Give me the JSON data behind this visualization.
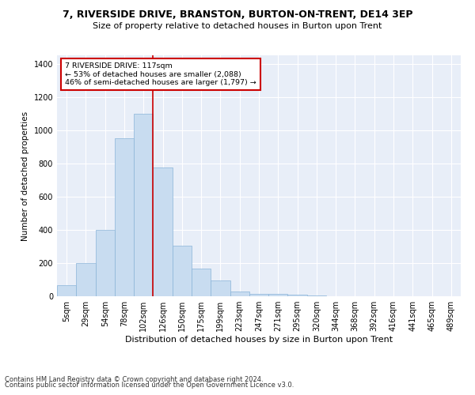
{
  "title1": "7, RIVERSIDE DRIVE, BRANSTON, BURTON-ON-TRENT, DE14 3EP",
  "title2": "Size of property relative to detached houses in Burton upon Trent",
  "xlabel": "Distribution of detached houses by size in Burton upon Trent",
  "ylabel": "Number of detached properties",
  "footnote1": "Contains HM Land Registry data © Crown copyright and database right 2024.",
  "footnote2": "Contains public sector information licensed under the Open Government Licence v3.0.",
  "annotation_line1": "7 RIVERSIDE DRIVE: 117sqm",
  "annotation_line2": "← 53% of detached houses are smaller (2,088)",
  "annotation_line3": "46% of semi-detached houses are larger (1,797) →",
  "bar_color": "#c8dcf0",
  "bar_edge_color": "#8ab4d8",
  "vline_color": "#cc0000",
  "annotation_box_edge": "#cc0000",
  "background_color": "#e8eef8",
  "categories": [
    "5sqm",
    "29sqm",
    "54sqm",
    "78sqm",
    "102sqm",
    "126sqm",
    "150sqm",
    "175sqm",
    "199sqm",
    "223sqm",
    "247sqm",
    "271sqm",
    "295sqm",
    "320sqm",
    "344sqm",
    "368sqm",
    "392sqm",
    "416sqm",
    "441sqm",
    "465sqm",
    "489sqm"
  ],
  "values": [
    65,
    200,
    400,
    950,
    1100,
    775,
    305,
    165,
    95,
    30,
    15,
    12,
    8,
    5,
    2,
    1,
    1,
    1,
    1,
    1,
    1
  ],
  "vline_x": 4.5,
  "ylim": [
    0,
    1450
  ],
  "yticks": [
    0,
    200,
    400,
    600,
    800,
    1000,
    1200,
    1400
  ],
  "title1_fontsize": 9,
  "title2_fontsize": 8,
  "xlabel_fontsize": 8,
  "ylabel_fontsize": 7.5,
  "footnote_fontsize": 6,
  "tick_fontsize": 7
}
